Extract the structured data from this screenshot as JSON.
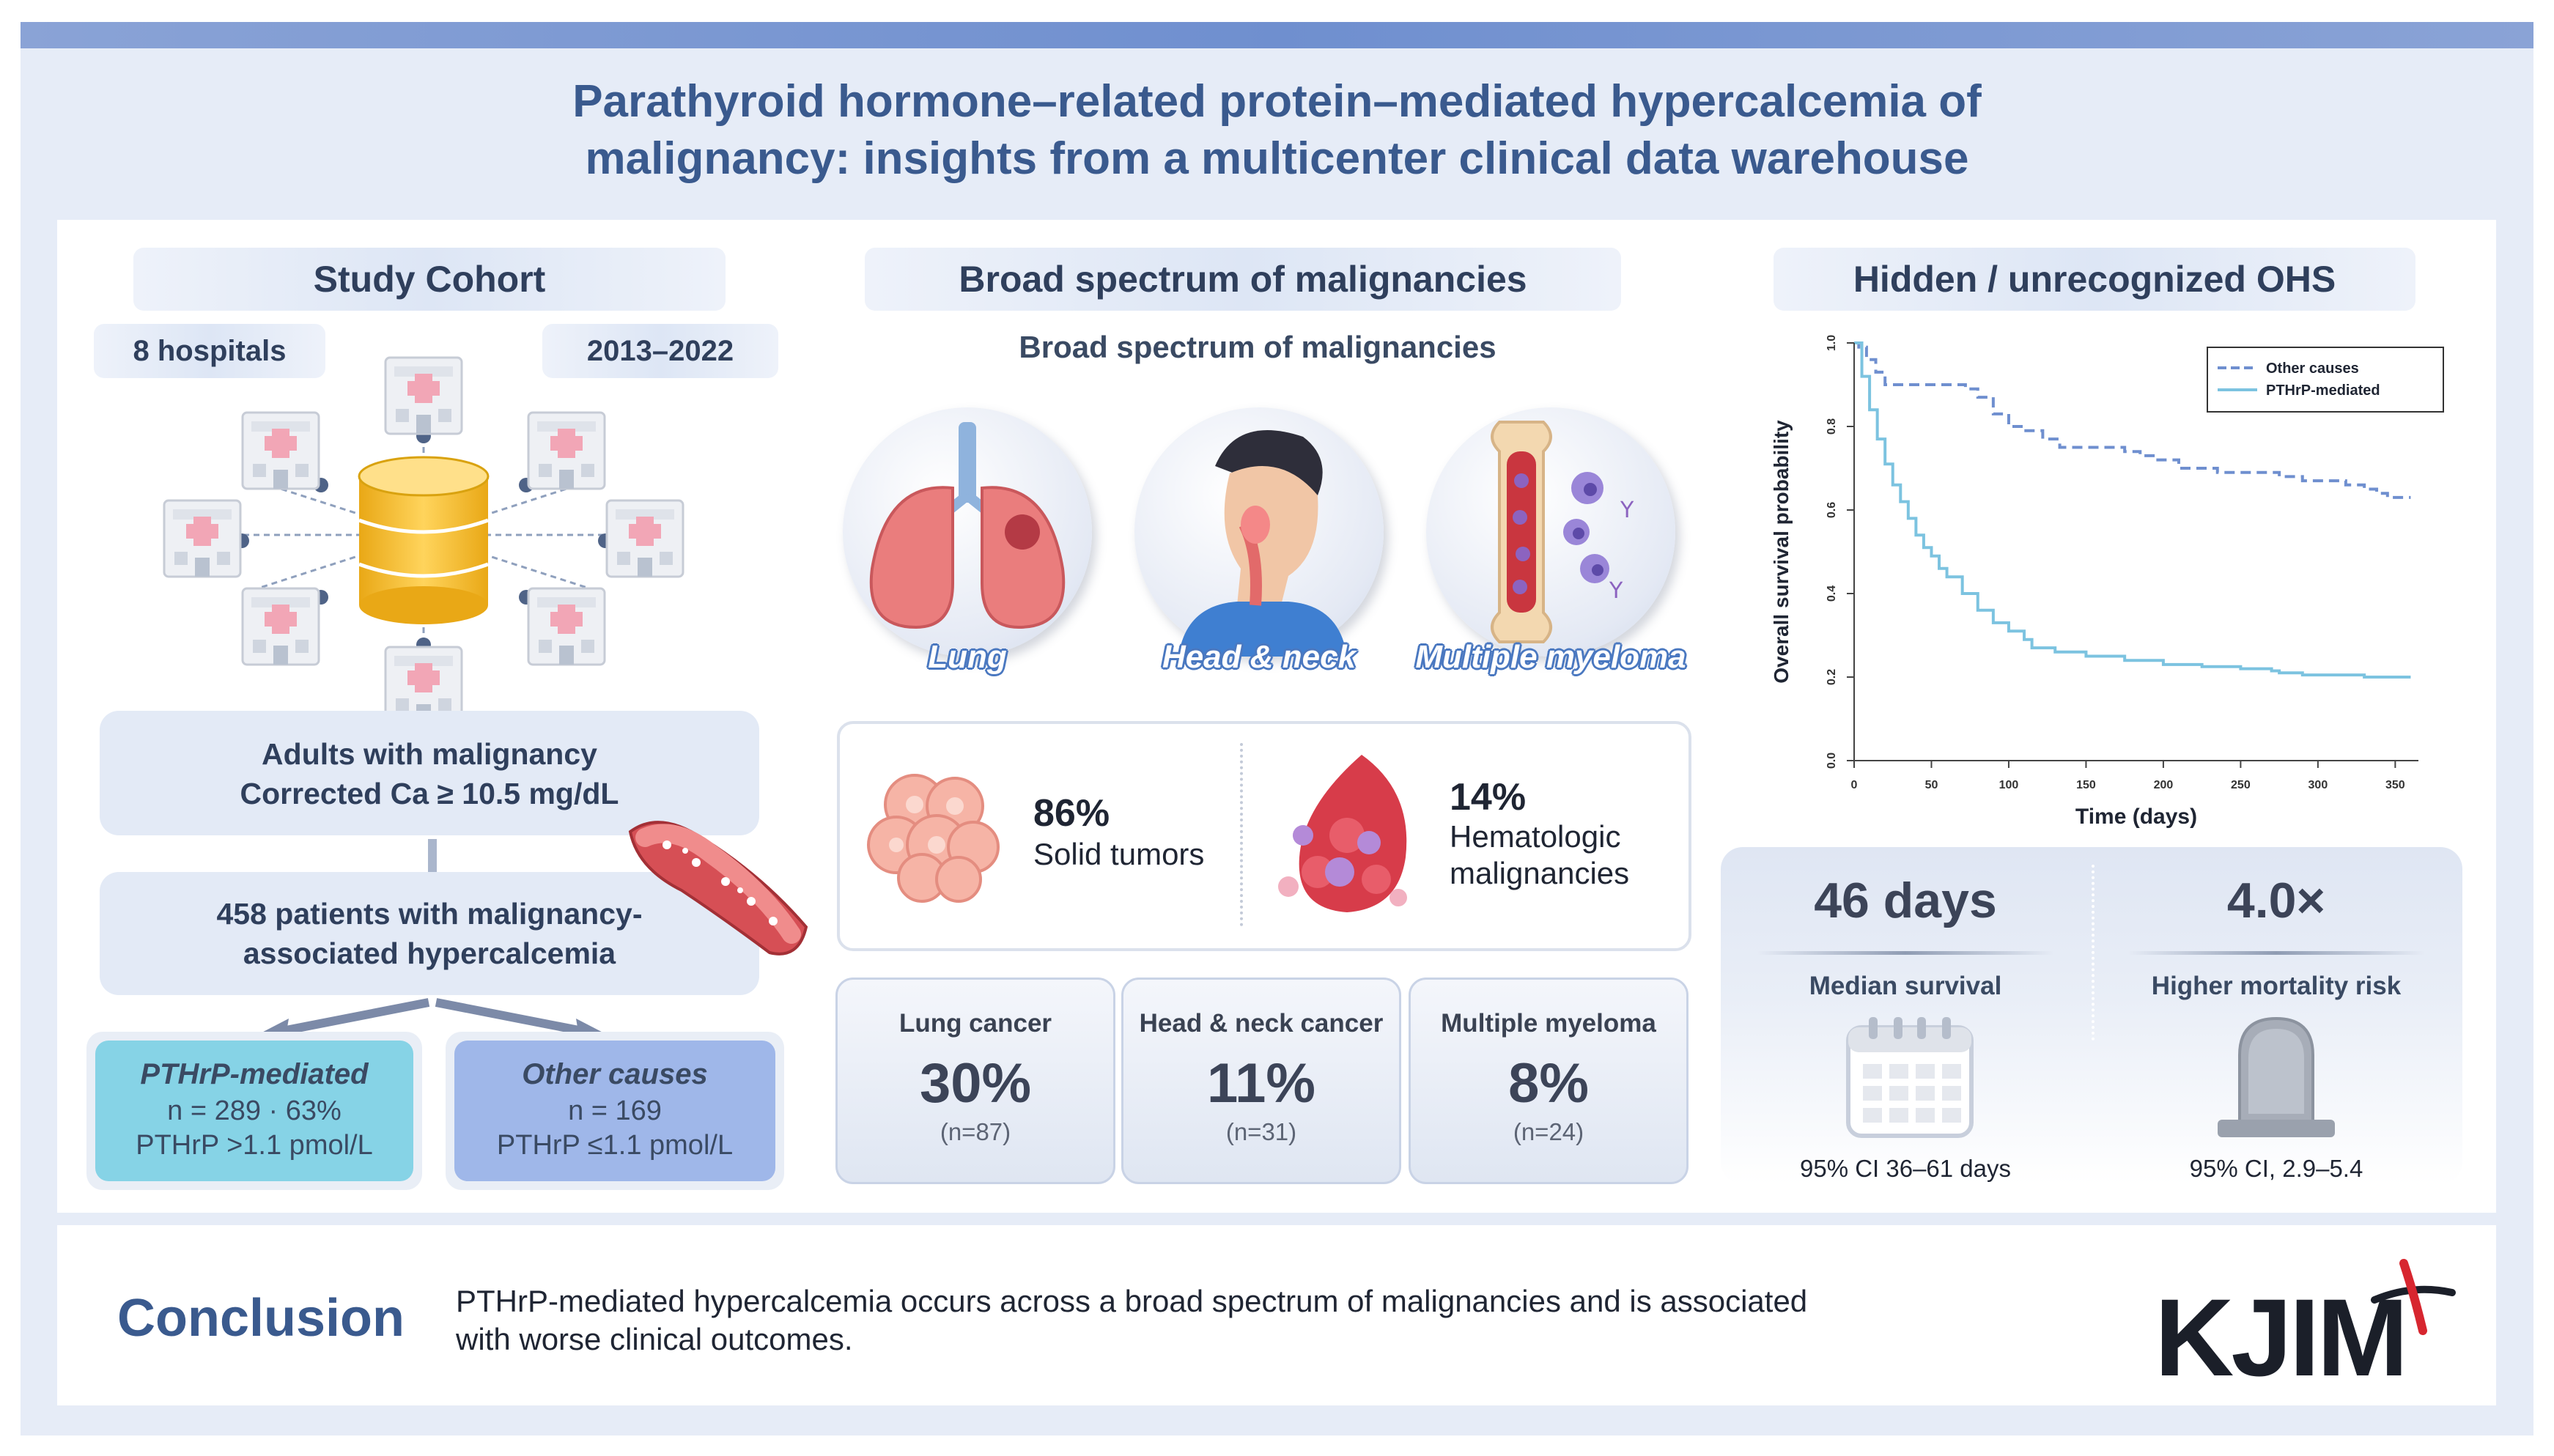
{
  "title": {
    "line1": "Parathyroid hormone–related protein–mediated hypercalcemia of",
    "line2": "malignancy: insights from a multicenter clinical data warehouse"
  },
  "cohort": {
    "header": "Study Cohort",
    "hospitals": "8 hospitals",
    "years": "2013–2022",
    "criteria_line1": "Adults with malignancy",
    "criteria_line2": "Corrected Ca ≥ 10.5 mg/dL",
    "patients_line1": "458 patients with malignancy-",
    "patients_line2": "associated hypercalcemia",
    "pthrp": {
      "title": "PTHrP-mediated",
      "n": "n = 289 · 63%",
      "crit": "PTHrP >1.1 pmol/L"
    },
    "other": {
      "title": "Other causes",
      "n": "n = 169",
      "crit": "PTHrP ≤1.1 pmol/L"
    }
  },
  "spectrum": {
    "header": "Broad spectrum of malignancies",
    "subheader": "Broad spectrum of malignancies",
    "organs": [
      "Lung",
      "Head & neck",
      "Multiple myeloma"
    ],
    "solid": {
      "pct": "86%",
      "label": "Solid tumors"
    },
    "heme": {
      "pct": "14%",
      "label1": "Hematologic",
      "label2": "malignancies"
    },
    "cancers": [
      {
        "name": "Lung cancer",
        "pct": "30%",
        "n": "(n=87)"
      },
      {
        "name": "Head & neck cancer",
        "pct": "11%",
        "n": "(n=31)"
      },
      {
        "name": "Multiple  myeloma",
        "pct": "8%",
        "n": "(n=24)"
      }
    ]
  },
  "ohs": {
    "header": "Hidden / unrecognized OHS",
    "median": {
      "value": "46 days",
      "label": "Median survival",
      "ci": "95%  CI 36–61 days"
    },
    "risk": {
      "value": "4.0×",
      "label": "Higher mortality  risk",
      "ci": "95%  CI, 2.9–5.4"
    }
  },
  "chart_data": {
    "type": "line",
    "xlabel": "Time (days)",
    "ylabel": "Overall survival probability",
    "xlim": [
      0,
      365
    ],
    "ylim": [
      0,
      1.0
    ],
    "xticks": [
      0,
      50,
      100,
      150,
      200,
      250,
      300,
      350
    ],
    "yticks": [
      0.0,
      0.2,
      0.4,
      0.6,
      0.8,
      1.0
    ],
    "ytick_labels": [
      "0.0",
      "0.2",
      "0.4",
      "0.6",
      "0.8",
      "1.0"
    ],
    "legend_position": "top-right",
    "colors": {
      "other": "#6f8fcf",
      "pthrp": "#7cc3e0"
    },
    "series": [
      {
        "name": "Other causes",
        "style": "dashed",
        "x": [
          0,
          3,
          8,
          14,
          20,
          45,
          65,
          72,
          80,
          90,
          100,
          110,
          122,
          133,
          160,
          175,
          185,
          195,
          205,
          210,
          225,
          235,
          240,
          265,
          275,
          282,
          290,
          310,
          318,
          330,
          338,
          345,
          360
        ],
        "y": [
          1.0,
          0.99,
          0.96,
          0.93,
          0.9,
          0.9,
          0.9,
          0.89,
          0.87,
          0.83,
          0.8,
          0.79,
          0.77,
          0.75,
          0.75,
          0.74,
          0.73,
          0.72,
          0.72,
          0.7,
          0.7,
          0.69,
          0.69,
          0.69,
          0.68,
          0.68,
          0.67,
          0.67,
          0.66,
          0.65,
          0.64,
          0.63,
          0.63
        ]
      },
      {
        "name": "PTHrP-mediated",
        "style": "solid",
        "x": [
          0,
          5,
          10,
          15,
          20,
          25,
          30,
          35,
          40,
          45,
          50,
          55,
          60,
          70,
          80,
          90,
          100,
          110,
          115,
          130,
          150,
          175,
          200,
          225,
          250,
          270,
          275,
          290,
          310,
          330,
          360
        ],
        "y": [
          1.0,
          0.92,
          0.84,
          0.77,
          0.71,
          0.66,
          0.62,
          0.58,
          0.54,
          0.51,
          0.49,
          0.46,
          0.44,
          0.4,
          0.36,
          0.33,
          0.31,
          0.29,
          0.27,
          0.26,
          0.25,
          0.24,
          0.23,
          0.225,
          0.22,
          0.215,
          0.21,
          0.205,
          0.205,
          0.2,
          0.2
        ]
      }
    ]
  },
  "conclusion": {
    "heading": "Conclusion",
    "line1": "PTHrP-mediated hypercalcemia occurs across a broad spectrum of malignancies and is associated",
    "line2": "with worse clinical outcomes."
  },
  "logo": "KJIM"
}
